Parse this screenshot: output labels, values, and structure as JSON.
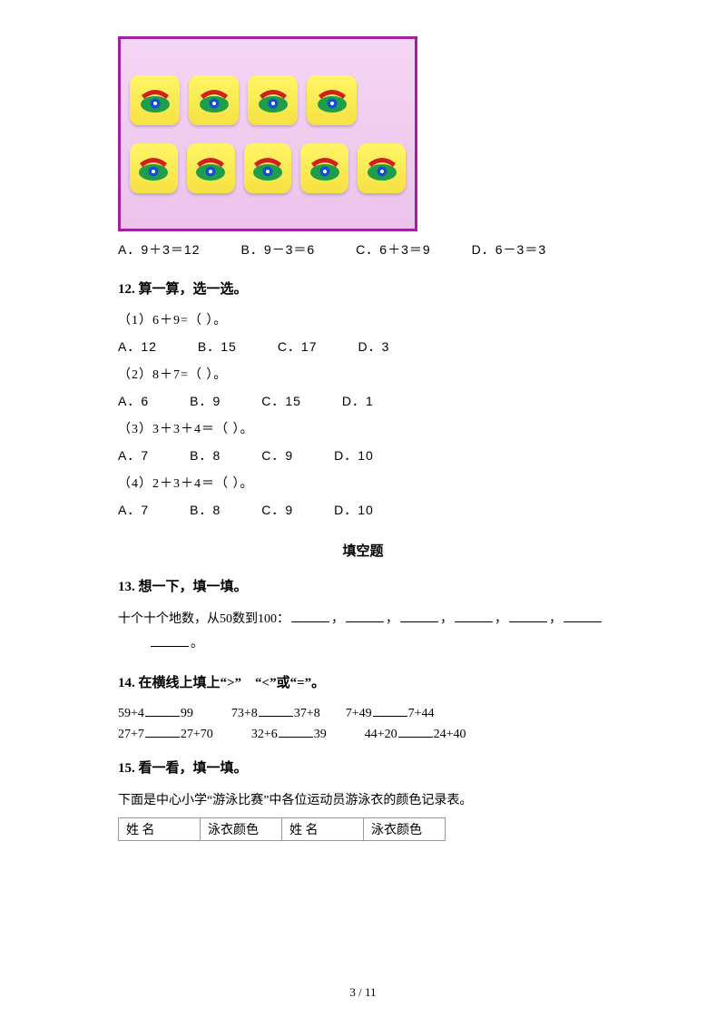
{
  "image": {
    "border_color": "#a020a0",
    "background_from": "#f5d5f5",
    "background_to": "#ebc3eb",
    "rows": [
      4,
      5
    ],
    "tile": {
      "bg_from": "#fff566",
      "bg_to": "#f5e142",
      "width": 55,
      "height": 55,
      "radius": 10
    },
    "phone": {
      "base_color": "#1e9e4a",
      "handset_color": "#d02020",
      "dial_color": "#1650d0"
    }
  },
  "q11_options": "A．9＋3＝12　　　B．9－3＝6　　　C．6＋3＝9　　　D．6－3＝3",
  "q12": {
    "title": "12. 算一算，选一选。",
    "parts": [
      {
        "prompt": "（1）6＋9=（ ）。",
        "choices": "A．12　　　B．15　　　C．17　　　D．3"
      },
      {
        "prompt": "（2）8＋7=（ ）。",
        "choices": "A．6　　　B．9　　　C．15　　　D．1"
      },
      {
        "prompt": "（3）3＋3＋4＝（ ）。",
        "choices": "A．7　　　B．8　　　C．9　　　D．10"
      },
      {
        "prompt": "（4）2＋3＋4＝（ ）。",
        "choices": "A．7　　　B．8　　　C．9　　　D．10"
      }
    ]
  },
  "section_fill": "填空题",
  "q13": {
    "title": "13. 想一下，填一填。",
    "text_pre": "十个十个地数，从50数到100：",
    "blanks_count": 6,
    "tail_after_wrap": "。",
    "comma": "，"
  },
  "q14": {
    "title": "14. 在横线上填上“>”　“<”或“=”。",
    "row1": [
      "59+4",
      "99",
      "73+8",
      "37+8",
      "7+49",
      "7+44"
    ],
    "row2": [
      "27+7",
      "27+70",
      "32+6",
      "39",
      "44+20",
      "24+40"
    ]
  },
  "q15": {
    "title": "15. 看一看，填一填。",
    "intro": "下面是中心小学“游泳比赛”中各位运动员游泳衣的颜色记录表。",
    "headers": [
      "姓 名",
      "泳衣颜色",
      "姓 名",
      "泳衣颜色"
    ]
  },
  "page_number": "3 / 11"
}
